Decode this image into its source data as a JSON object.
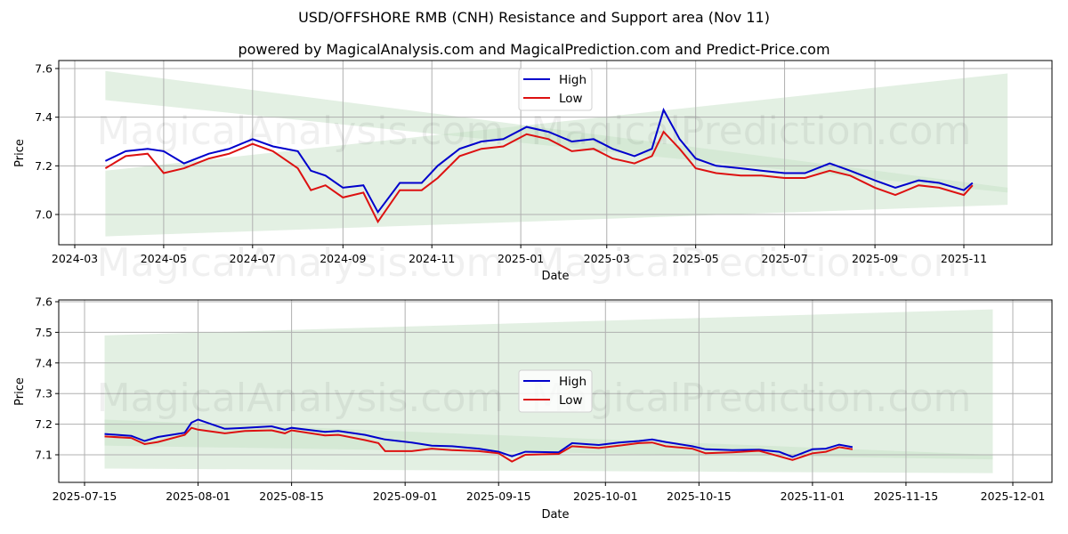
{
  "header": {
    "title": "USD/OFFSHORE RMB (CNH) Resistance and Support area (Nov 11)",
    "subtitle": "powered by MagicalAnalysis.com and MagicalPrediction.com and Predict-Price.com"
  },
  "watermark": {
    "left": "MagicalAnalysis.com",
    "right": "MagicalPrediction.com"
  },
  "colors": {
    "high": "#0000cc",
    "low": "#dd1111",
    "band": "#c8e2c8",
    "grid": "#b0b0b0"
  },
  "chart_data": [
    {
      "type": "line",
      "title": "Long-term view",
      "xlabel": "Date",
      "ylabel": "Price",
      "ylim": [
        6.88,
        7.62
      ],
      "grid": true,
      "legend": {
        "position": "upper center",
        "entries": [
          "High",
          "Low"
        ]
      },
      "x_ticks": [
        "2024-03",
        "2024-05",
        "2024-07",
        "2024-09",
        "2024-11",
        "2025-01",
        "2025-03",
        "2025-05",
        "2025-07",
        "2025-09",
        "2025-11"
      ],
      "y_ticks": [
        "7.0",
        "7.2",
        "7.4",
        "7.6"
      ],
      "x": [
        "2024-03-22",
        "2024-04-05",
        "2024-04-20",
        "2024-05-01",
        "2024-05-15",
        "2024-06-01",
        "2024-06-15",
        "2024-07-01",
        "2024-07-15",
        "2024-08-01",
        "2024-08-10",
        "2024-08-20",
        "2024-09-01",
        "2024-09-15",
        "2024-09-25",
        "2024-10-10",
        "2024-10-25",
        "2024-11-05",
        "2024-11-20",
        "2024-12-05",
        "2024-12-20",
        "2025-01-05",
        "2025-01-20",
        "2025-02-05",
        "2025-02-20",
        "2025-03-05",
        "2025-03-20",
        "2025-04-01",
        "2025-04-09",
        "2025-04-20",
        "2025-05-01",
        "2025-05-15",
        "2025-06-01",
        "2025-06-15",
        "2025-07-01",
        "2025-07-15",
        "2025-08-01",
        "2025-08-15",
        "2025-09-01",
        "2025-09-15",
        "2025-10-01",
        "2025-10-15",
        "2025-11-01",
        "2025-11-07"
      ],
      "series": [
        {
          "name": "High",
          "values": [
            7.22,
            7.26,
            7.27,
            7.26,
            7.21,
            7.25,
            7.27,
            7.31,
            7.28,
            7.26,
            7.18,
            7.16,
            7.11,
            7.12,
            7.01,
            7.13,
            7.13,
            7.2,
            7.27,
            7.3,
            7.31,
            7.36,
            7.34,
            7.3,
            7.31,
            7.27,
            7.24,
            7.27,
            7.43,
            7.31,
            7.23,
            7.2,
            7.19,
            7.18,
            7.17,
            7.17,
            7.21,
            7.18,
            7.14,
            7.11,
            7.14,
            7.13,
            7.1,
            7.13
          ]
        },
        {
          "name": "Low",
          "values": [
            7.19,
            7.24,
            7.25,
            7.17,
            7.19,
            7.23,
            7.25,
            7.29,
            7.26,
            7.19,
            7.1,
            7.12,
            7.07,
            7.09,
            6.97,
            7.1,
            7.1,
            7.15,
            7.24,
            7.27,
            7.28,
            7.33,
            7.31,
            7.26,
            7.27,
            7.23,
            7.21,
            7.24,
            7.34,
            7.27,
            7.19,
            7.17,
            7.16,
            7.16,
            7.15,
            7.15,
            7.18,
            7.16,
            7.11,
            7.08,
            7.12,
            7.11,
            7.08,
            7.12
          ]
        }
      ],
      "bands": [
        {
          "name": "resistance-outer",
          "x": [
            "2024-03-22",
            "2025-12-01"
          ],
          "upper": [
            7.59,
            7.11
          ],
          "lower": [
            7.47,
            7.09
          ]
        },
        {
          "name": "support-outer",
          "x": [
            "2024-03-22",
            "2025-12-01"
          ],
          "upper": [
            7.18,
            7.58
          ],
          "lower": [
            6.91,
            7.04
          ]
        }
      ]
    },
    {
      "type": "line",
      "title": "Recent view",
      "xlabel": "Date",
      "ylabel": "Price",
      "ylim": [
        7.01,
        7.61
      ],
      "grid": true,
      "legend": {
        "position": "center",
        "entries": [
          "High",
          "Low"
        ]
      },
      "x_ticks": [
        "2025-07-15",
        "2025-08-01",
        "2025-08-15",
        "2025-09-01",
        "2025-09-15",
        "2025-10-01",
        "2025-10-15",
        "2025-11-01",
        "2025-11-15",
        "2025-12-01"
      ],
      "y_ticks": [
        "7.1",
        "7.2",
        "7.3",
        "7.4",
        "7.5",
        "7.6"
      ],
      "x": [
        "2025-07-18",
        "2025-07-22",
        "2025-07-24",
        "2025-07-26",
        "2025-07-30",
        "2025-07-31",
        "2025-08-01",
        "2025-08-05",
        "2025-08-08",
        "2025-08-12",
        "2025-08-14",
        "2025-08-15",
        "2025-08-20",
        "2025-08-22",
        "2025-08-26",
        "2025-08-28",
        "2025-08-29",
        "2025-09-02",
        "2025-09-05",
        "2025-09-08",
        "2025-09-12",
        "2025-09-15",
        "2025-09-17",
        "2025-09-19",
        "2025-09-24",
        "2025-09-26",
        "2025-09-30",
        "2025-10-03",
        "2025-10-06",
        "2025-10-08",
        "2025-10-10",
        "2025-10-14",
        "2025-10-16",
        "2025-10-20",
        "2025-10-24",
        "2025-10-27",
        "2025-10-29",
        "2025-11-01",
        "2025-11-03",
        "2025-11-05",
        "2025-11-07"
      ],
      "series": [
        {
          "name": "High",
          "values": [
            7.168,
            7.162,
            7.145,
            7.158,
            7.172,
            7.205,
            7.215,
            7.185,
            7.188,
            7.193,
            7.182,
            7.188,
            7.175,
            7.178,
            7.165,
            7.155,
            7.15,
            7.14,
            7.13,
            7.128,
            7.12,
            7.11,
            7.095,
            7.11,
            7.108,
            7.138,
            7.132,
            7.14,
            7.145,
            7.15,
            7.142,
            7.128,
            7.118,
            7.115,
            7.117,
            7.11,
            7.093,
            7.118,
            7.12,
            7.133,
            7.125
          ]
        },
        {
          "name": "Low",
          "values": [
            7.16,
            7.155,
            7.135,
            7.142,
            7.165,
            7.188,
            7.182,
            7.17,
            7.178,
            7.18,
            7.17,
            7.18,
            7.163,
            7.165,
            7.148,
            7.138,
            7.112,
            7.112,
            7.12,
            7.115,
            7.112,
            7.105,
            7.078,
            7.1,
            7.103,
            7.128,
            7.122,
            7.13,
            7.138,
            7.14,
            7.128,
            7.12,
            7.105,
            7.108,
            7.113,
            7.095,
            7.083,
            7.105,
            7.11,
            7.125,
            7.118
          ]
        }
      ],
      "bands": [
        {
          "name": "resistance-outer",
          "x": [
            "2025-07-18",
            "2025-11-28"
          ],
          "upper": [
            7.49,
            7.575
          ],
          "lower": [
            7.055,
            7.04
          ]
        },
        {
          "name": "support-inner",
          "x": [
            "2025-07-18",
            "2025-11-28"
          ],
          "upper": [
            7.215,
            7.1
          ],
          "lower": [
            7.13,
            7.085
          ]
        }
      ]
    }
  ]
}
